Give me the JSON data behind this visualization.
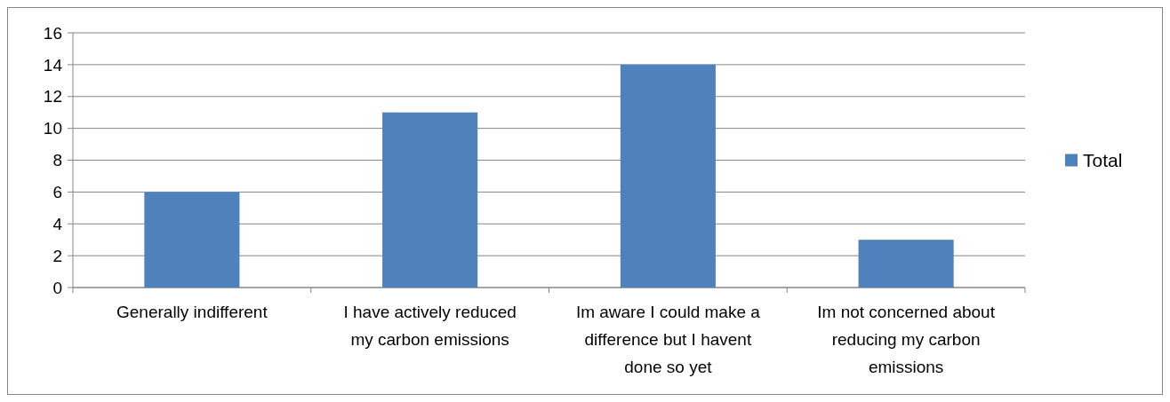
{
  "chart_data": {
    "type": "bar",
    "categories": [
      "Generally indifferent",
      "I have actively reduced my carbon emissions",
      "Im aware I could make a difference but I havent done so yet",
      "Im not concerned about reducing my carbon emissions"
    ],
    "series": [
      {
        "name": "Total",
        "color": "#4f81bd",
        "values": [
          6,
          11,
          14,
          3
        ]
      }
    ],
    "ylim": [
      0,
      16
    ],
    "yticks": [
      0,
      2,
      4,
      6,
      8,
      10,
      12,
      14,
      16
    ],
    "grid": "y",
    "legend": "right"
  }
}
